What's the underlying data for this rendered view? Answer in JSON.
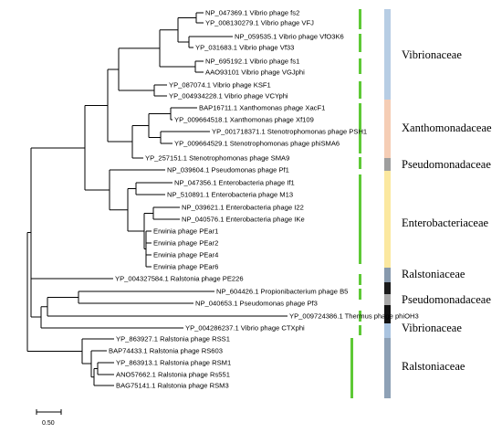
{
  "taxa": [
    "NP_047369.1 Vibrio phage fs2",
    "YP_008130279.1 Vibrio phage VFJ",
    "NP_059535.1 Vibrio phage VfO3K6",
    "YP_031683.1 Vibrio phage Vf33",
    "NP_695192.1 Vibrio phage fs1",
    "AAO93101 Vibrio phage VGJphi",
    "YP_087074.1 Vibrio phage KSF1",
    "YP_004934228.1 Vibrio phage VCYphi",
    "BAP16711.1 Xanthomonas phage XacF1",
    "YP_009664518.1 Xanthomonas phage Xf109",
    "YP_001718371.1 Stenotrophomonas phage PSH1",
    "YP_009664529.1 Stenotrophomonas phage phiSMA6",
    "YP_257151.1 Stenotrophomonas phage SMA9",
    "NP_039604.1 Pseudomonas phage Pf1",
    "NP_047356.1 Enterobacteria phage If1",
    "NP_510891.1 Enterobacteria phage M13",
    "NP_039621.1 Enterobacteria phage I22",
    "NP_040576.1 Enterobacteria phage IKe",
    "Erwinia phage PEar1",
    "Erwinia phage PEar2",
    "Erwinia phage PEar4",
    "Erwinia phage PEar6",
    "YP_004327584.1 Ralstonia phage PE226",
    "NP_604426.1 Propionibacterium phage B5",
    "NP_040653.1 Pseudomonas phage Pf3",
    "YP_009724386.1 Thermus phage phiOH3",
    "YP_004286237.1 Vibrio phage CTXphi",
    "YP_863927.1 Ralstonia phage RSS1",
    "BAP74433.1 Ralstonia phage RS603",
    "YP_863913.1 Ralstonia phage RSM1",
    "ANO57662.1 Ralstonia phage Rs551",
    "BAG75141.1 Ralstonia phage RSM3"
  ],
  "families": [
    {
      "label": "Vibrionaceae",
      "color": "#b7cde4"
    },
    {
      "label": "Xanthomonadaceae",
      "color": "#f5cdb5"
    },
    {
      "label": "",
      "color": "#9e9e9e"
    },
    {
      "label": "Pseudomonadaceae",
      "color": ""
    },
    {
      "label": "Enterobacteriaceae",
      "color": "#fbe8a0"
    },
    {
      "label": "Ralstoniaceae",
      "color": "#8799ad"
    },
    {
      "label": "",
      "color": "#1a1a1a"
    },
    {
      "label": "Pseudomonadaceae",
      "color": "#a8a8a8"
    },
    {
      "label": "",
      "color": "#111111"
    },
    {
      "label": "Vibrionaceae",
      "color": "#aac4e0"
    },
    {
      "label": "Ralstoniaceae",
      "color": "#8ea1b6"
    }
  ],
  "scale_bar": {
    "label": "0.50"
  },
  "mark_color": "#5ec936"
}
